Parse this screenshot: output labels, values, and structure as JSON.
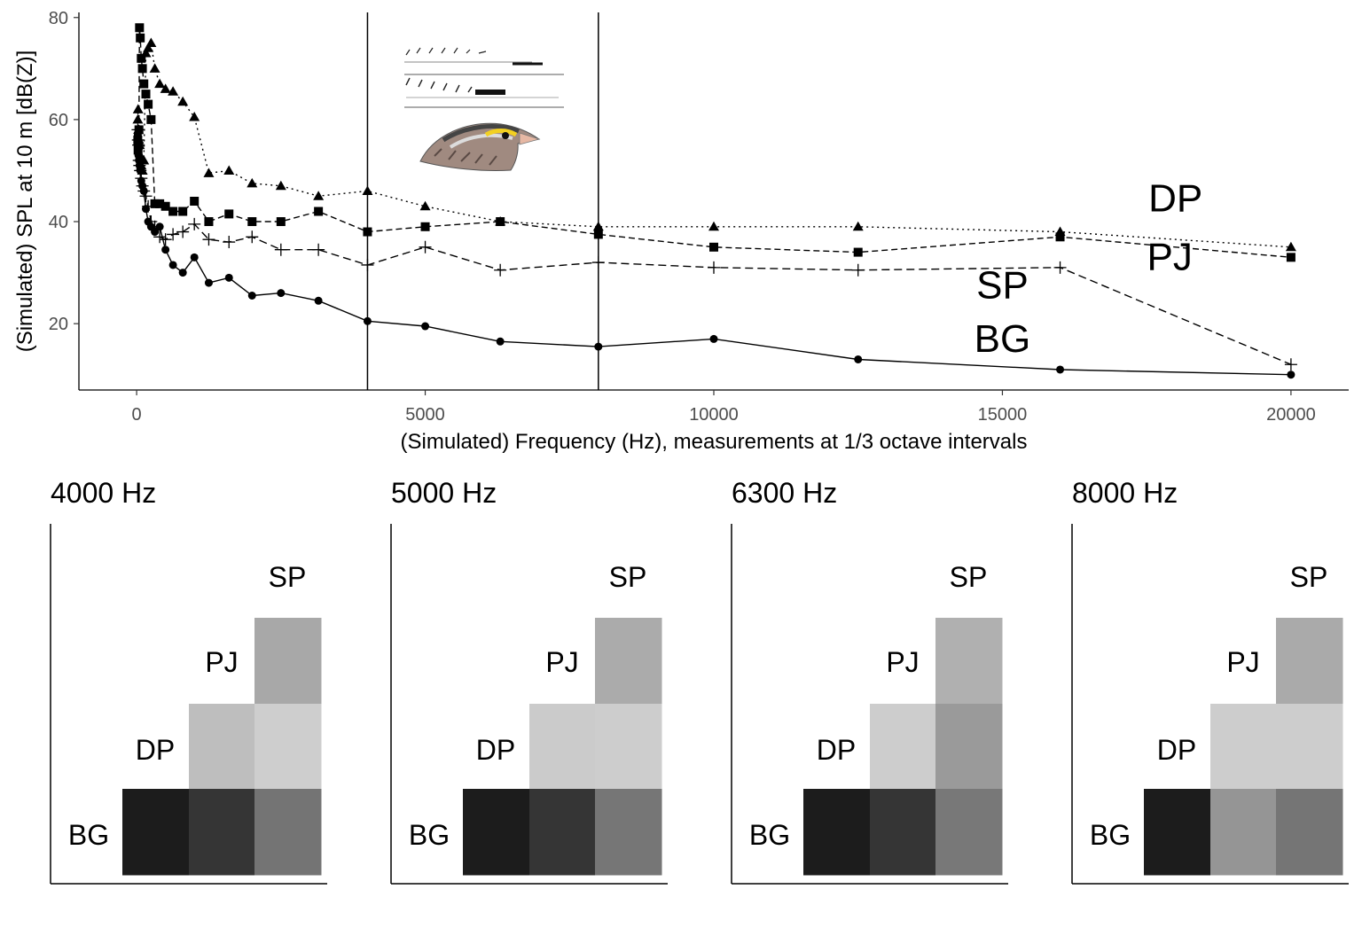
{
  "chart_data": [
    {
      "type": "line",
      "xlabel": "(Simulated) Frequency (Hz), measurements at 1/3 octave intervals",
      "ylabel": "(Simulated) SPL at 10 m [dB(Z)]",
      "xlim": [
        -1000,
        21000
      ],
      "ylim": [
        7,
        81
      ],
      "xticks": [
        0,
        5000,
        10000,
        15000,
        20000
      ],
      "yticks": [
        20,
        40,
        60,
        80
      ],
      "vlines": [
        4000,
        8000
      ],
      "grid": false,
      "series": [
        {
          "name": "DP",
          "marker": "triangle",
          "dash": "dotted",
          "label_pos": [
            18000,
            42
          ],
          "x": [
            20,
            25,
            31.5,
            40,
            50,
            63,
            80,
            100,
            125,
            160,
            200,
            250,
            315,
            400,
            500,
            630,
            800,
            1000,
            1250,
            1600,
            2000,
            2500,
            3150,
            4000,
            5000,
            6300,
            8000,
            10000,
            12500,
            16000,
            20000
          ],
          "y": [
            60,
            62,
            58,
            56,
            55,
            53,
            51,
            50,
            52,
            73,
            74,
            75,
            70,
            67,
            66,
            65.5,
            63.5,
            60.5,
            49.5,
            50,
            47.5,
            47,
            45,
            46,
            43,
            40,
            39,
            39,
            39,
            38,
            35
          ]
        },
        {
          "name": "PJ",
          "marker": "square",
          "dash": "dashed",
          "label_pos": [
            17900,
            30.5
          ],
          "x": [
            20,
            25,
            31.5,
            40,
            50,
            63,
            80,
            100,
            125,
            160,
            200,
            250,
            315,
            400,
            500,
            630,
            800,
            1000,
            1250,
            1600,
            2000,
            2500,
            3150,
            4000,
            5000,
            6300,
            8000,
            10000,
            12500,
            16000,
            20000
          ],
          "y": [
            56,
            54,
            55,
            58,
            78,
            76,
            72,
            70,
            67,
            65,
            63,
            60,
            43.5,
            43.5,
            43,
            42,
            42,
            44,
            40,
            41.5,
            40,
            40,
            42,
            38,
            39,
            40,
            37.5,
            35,
            34,
            37,
            33
          ]
        },
        {
          "name": "SP",
          "marker": "plus",
          "dash": "longdash",
          "label_pos": [
            15000,
            25
          ],
          "x": [
            20,
            25,
            31.5,
            40,
            50,
            63,
            80,
            100,
            125,
            160,
            200,
            250,
            315,
            400,
            500,
            630,
            800,
            1000,
            1250,
            1600,
            2000,
            2500,
            3150,
            4000,
            5000,
            6300,
            8000,
            10000,
            12500,
            16000,
            20000
          ],
          "y": [
            58,
            56,
            55,
            52,
            51,
            50,
            48.5,
            47,
            46,
            45,
            43,
            40,
            39,
            37,
            36.5,
            37.5,
            38,
            39.5,
            36.5,
            36,
            37,
            34.5,
            34.5,
            31.5,
            35,
            30.5,
            32,
            31,
            30.5,
            31,
            12
          ]
        },
        {
          "name": "BG",
          "marker": "circle",
          "dash": "solid",
          "label_pos": [
            15000,
            14.5
          ],
          "x": [
            20,
            25,
            31.5,
            40,
            50,
            63,
            80,
            100,
            125,
            160,
            200,
            250,
            315,
            400,
            500,
            630,
            800,
            1000,
            1250,
            1600,
            2000,
            2500,
            3150,
            4000,
            5000,
            6300,
            8000,
            10000,
            12500,
            16000,
            20000
          ],
          "y": [
            57,
            55,
            53,
            52,
            51,
            50,
            48,
            47,
            46,
            42.5,
            40,
            39,
            38,
            39,
            34.5,
            31.5,
            30,
            33,
            28,
            29,
            25.5,
            26,
            24.5,
            20.5,
            19.5,
            16.5,
            15.5,
            17,
            13,
            11,
            10
          ]
        }
      ]
    },
    {
      "type": "heatmap",
      "title": "4000 Hz",
      "row_labels": [
        "SP",
        "PJ",
        "DP",
        "BG"
      ],
      "col_labels": [
        "BG",
        "DP",
        "PJ"
      ],
      "cells": [
        {
          "row": "PJ",
          "col": "PJ",
          "gray": "#a8a8a8"
        },
        {
          "row": "DP",
          "col": "DP",
          "gray": "#bebebe"
        },
        {
          "row": "DP",
          "col": "PJ",
          "gray": "#cecece"
        },
        {
          "row": "BG",
          "col": "BG",
          "gray": "#1c1c1c"
        },
        {
          "row": "BG",
          "col": "DP",
          "gray": "#353535"
        },
        {
          "row": "BG",
          "col": "PJ",
          "gray": "#747474"
        }
      ]
    },
    {
      "type": "heatmap",
      "title": "5000 Hz",
      "row_labels": [
        "SP",
        "PJ",
        "DP",
        "BG"
      ],
      "col_labels": [
        "BG",
        "DP",
        "PJ"
      ],
      "cells": [
        {
          "row": "PJ",
          "col": "PJ",
          "gray": "#ababab"
        },
        {
          "row": "DP",
          "col": "DP",
          "gray": "#cbcbcb"
        },
        {
          "row": "DP",
          "col": "PJ",
          "gray": "#cdcdcd"
        },
        {
          "row": "BG",
          "col": "BG",
          "gray": "#1c1c1c"
        },
        {
          "row": "BG",
          "col": "DP",
          "gray": "#353535"
        },
        {
          "row": "BG",
          "col": "PJ",
          "gray": "#767676"
        }
      ]
    },
    {
      "type": "heatmap",
      "title": "6300 Hz",
      "row_labels": [
        "SP",
        "PJ",
        "DP",
        "BG"
      ],
      "col_labels": [
        "BG",
        "DP",
        "PJ"
      ],
      "cells": [
        {
          "row": "PJ",
          "col": "PJ",
          "gray": "#b0b0b0"
        },
        {
          "row": "DP",
          "col": "DP",
          "gray": "#cdcdcd"
        },
        {
          "row": "DP",
          "col": "PJ",
          "gray": "#9a9a9a"
        },
        {
          "row": "BG",
          "col": "BG",
          "gray": "#1c1c1c"
        },
        {
          "row": "BG",
          "col": "DP",
          "gray": "#353535"
        },
        {
          "row": "BG",
          "col": "PJ",
          "gray": "#787878"
        }
      ]
    },
    {
      "type": "heatmap",
      "title": "8000 Hz",
      "row_labels": [
        "SP",
        "PJ",
        "DP",
        "BG"
      ],
      "col_labels": [
        "BG",
        "DP",
        "PJ"
      ],
      "cells": [
        {
          "row": "PJ",
          "col": "PJ",
          "gray": "#aaaaaa"
        },
        {
          "row": "DP",
          "col": "DP",
          "gray": "#cdcdcd"
        },
        {
          "row": "DP",
          "col": "PJ",
          "gray": "#cdcdcd"
        },
        {
          "row": "BG",
          "col": "BG",
          "gray": "#1c1c1c"
        },
        {
          "row": "BG",
          "col": "DP",
          "gray": "#959595"
        },
        {
          "row": "BG",
          "col": "PJ",
          "gray": "#757575"
        }
      ]
    }
  ]
}
